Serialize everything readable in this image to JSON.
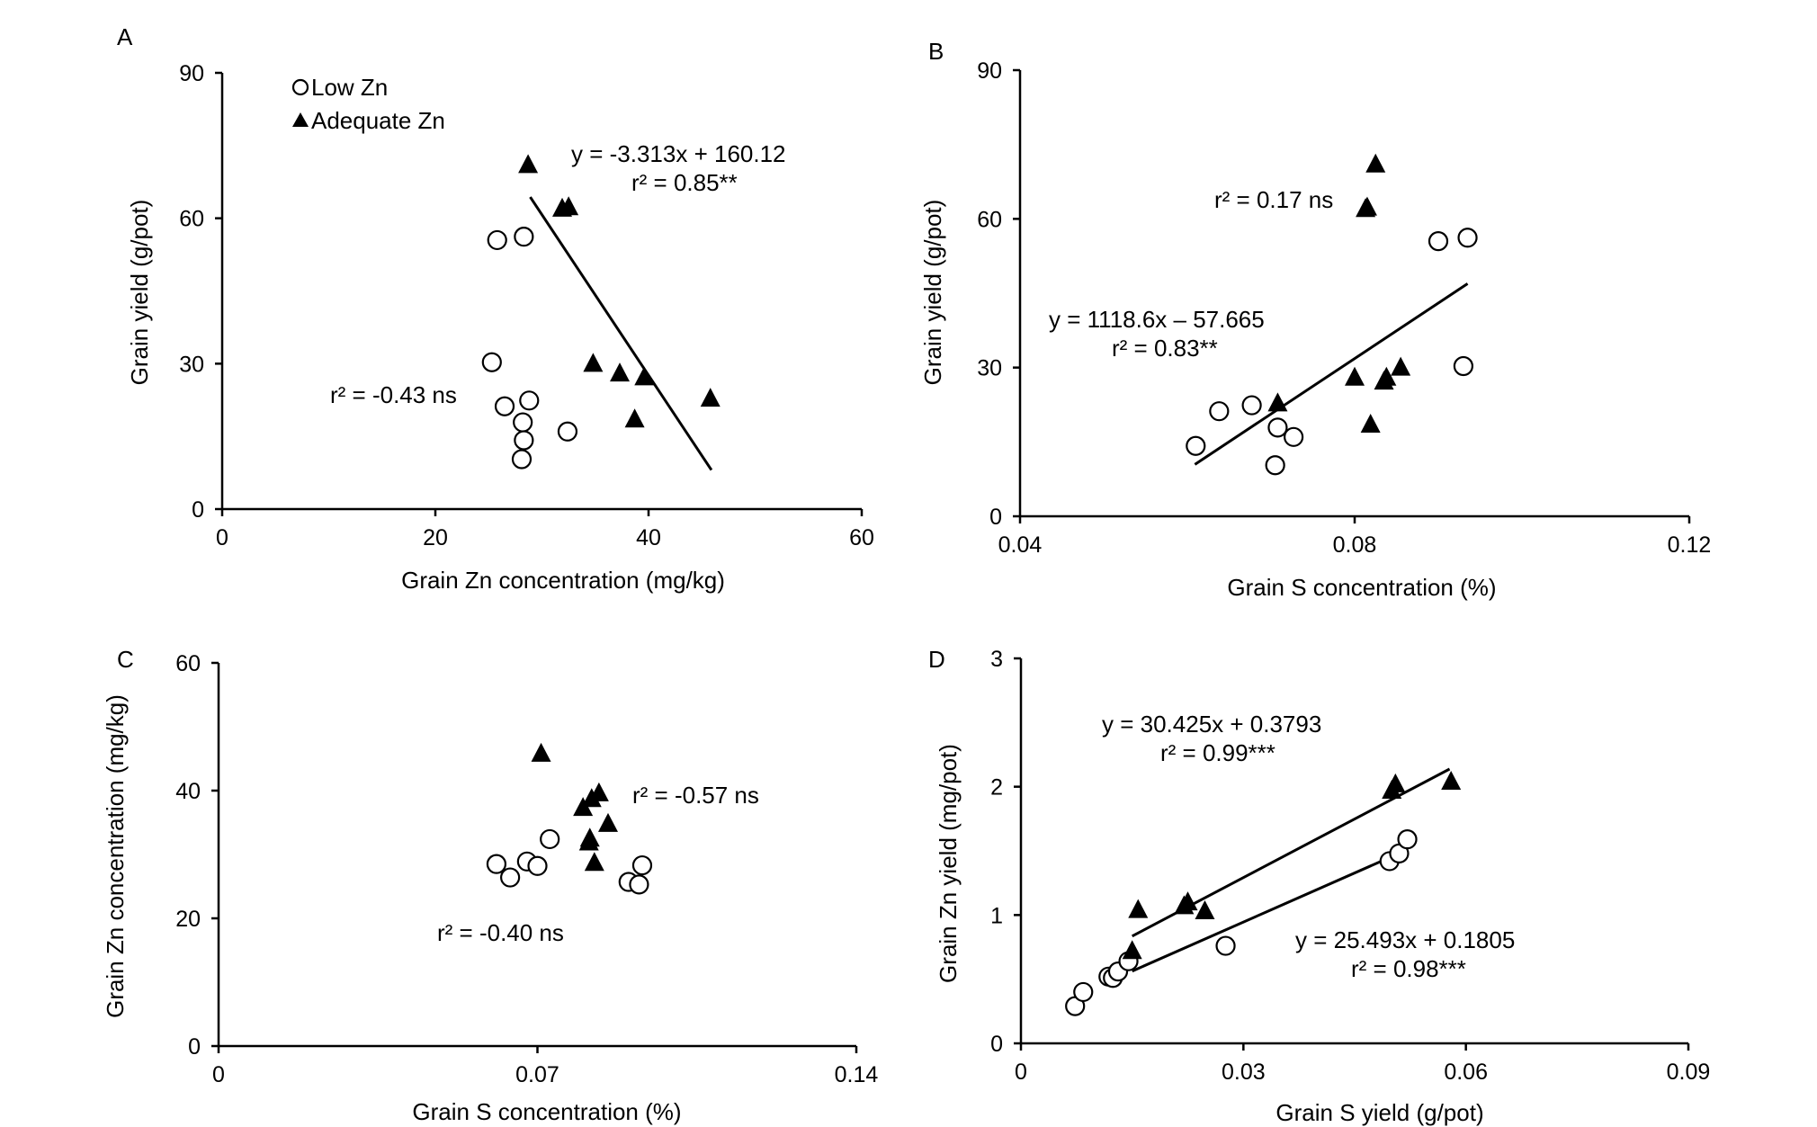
{
  "chart_data": [
    {
      "panel": "A",
      "type": "scatter",
      "xlabel": "Grain Zn concentration (mg/kg)",
      "ylabel": "Grain yield (g/pot)",
      "xlim": [
        0,
        60
      ],
      "ylim": [
        0,
        90
      ],
      "xticks": [
        "0",
        "20",
        "40",
        "60"
      ],
      "yticks": [
        "0",
        "30",
        "60",
        "90"
      ],
      "legend": {
        "placement": "top-left",
        "entries": [
          "Low Zn",
          "Adequate Zn"
        ]
      },
      "series": [
        {
          "name": "Low Zn",
          "marker": "circle-open",
          "points": [
            [
              25.8,
              55.5
            ],
            [
              28.3,
              56.2
            ],
            [
              25.3,
              30.3
            ],
            [
              26.5,
              21.2
            ],
            [
              28.8,
              22.4
            ],
            [
              28.2,
              17.9
            ],
            [
              28.3,
              14.2
            ],
            [
              32.4,
              16.0
            ],
            [
              28.1,
              10.3
            ]
          ]
        },
        {
          "name": "Adequate Zn",
          "marker": "triangle-filled",
          "points": [
            [
              28.7,
              71.0
            ],
            [
              31.9,
              62.0
            ],
            [
              32.5,
              62.3
            ],
            [
              34.8,
              30.0
            ],
            [
              37.3,
              28.0
            ],
            [
              39.6,
              27.2
            ],
            [
              38.7,
              18.5
            ],
            [
              45.8,
              22.8
            ]
          ]
        }
      ],
      "annotations": [
        {
          "equation": "y = -3.313x + 160.12",
          "r2": "r² = 0.85**"
        },
        {
          "r2": "r² = -0.43 ns"
        }
      ],
      "fit": {
        "series": "Adequate Zn",
        "x_range": [
          28.9,
          45.9
        ]
      }
    },
    {
      "panel": "B",
      "type": "scatter",
      "xlabel": "Grain S concentration (%)",
      "ylabel": "Grain yield (g/pot)",
      "xlim": [
        0.04,
        0.12
      ],
      "ylim": [
        0,
        90
      ],
      "xticks": [
        "0.04",
        "0.08",
        "0.12"
      ],
      "yticks": [
        "0",
        "30",
        "60",
        "90"
      ],
      "series": [
        {
          "name": "Low Zn",
          "marker": "circle-open",
          "points": [
            [
              0.061,
              14.2
            ],
            [
              0.0638,
              21.2
            ],
            [
              0.0677,
              22.4
            ],
            [
              0.0708,
              17.9
            ],
            [
              0.0727,
              16.0
            ],
            [
              0.0705,
              10.3
            ],
            [
              0.09,
              55.5
            ],
            [
              0.0935,
              56.2
            ],
            [
              0.093,
              30.3
            ]
          ]
        },
        {
          "name": "Adequate Zn",
          "marker": "triangle-filled",
          "points": [
            [
              0.0825,
              71.0
            ],
            [
              0.0813,
              62.0
            ],
            [
              0.0815,
              62.3
            ],
            [
              0.08,
              28.0
            ],
            [
              0.0835,
              27.2
            ],
            [
              0.0838,
              28.0
            ],
            [
              0.0855,
              30.0
            ],
            [
              0.0819,
              18.5
            ],
            [
              0.0708,
              22.8
            ]
          ]
        }
      ],
      "annotations": [
        {
          "r2": "r² = 0.17 ns"
        },
        {
          "equation": "y = 1118.6x – 57.665",
          "r2": "r² = 0.83**"
        }
      ],
      "fit": {
        "series": "Low Zn",
        "x_range": [
          0.0609,
          0.0935
        ]
      }
    },
    {
      "panel": "C",
      "type": "scatter",
      "xlabel": "Grain S concentration (%)",
      "ylabel": "Grain Zn concentration (mg/kg)",
      "xlim": [
        0,
        0.14
      ],
      "ylim": [
        0,
        60
      ],
      "xticks": [
        "0",
        "0.07",
        "0.14"
      ],
      "yticks": [
        "0",
        "20",
        "40",
        "60"
      ],
      "series": [
        {
          "name": "Low Zn",
          "marker": "circle-open",
          "points": [
            [
              0.061,
              28.5
            ],
            [
              0.064,
              26.4
            ],
            [
              0.0677,
              28.9
            ],
            [
              0.07,
              28.2
            ],
            [
              0.0727,
              32.4
            ],
            [
              0.09,
              25.7
            ],
            [
              0.0923,
              25.3
            ],
            [
              0.093,
              28.3
            ]
          ]
        },
        {
          "name": "Adequate Zn",
          "marker": "triangle-filled",
          "points": [
            [
              0.0708,
              45.8
            ],
            [
              0.08,
              37.3
            ],
            [
              0.0819,
              38.7
            ],
            [
              0.0835,
              39.6
            ],
            [
              0.0813,
              31.9
            ],
            [
              0.0815,
              32.5
            ],
            [
              0.0855,
              34.8
            ],
            [
              0.0825,
              28.7
            ]
          ]
        }
      ],
      "annotations": [
        {
          "r2": "r² = -0.57 ns"
        },
        {
          "r2": "r² = -0.40 ns"
        }
      ]
    },
    {
      "panel": "D",
      "type": "scatter",
      "xlabel": "Grain S yield (g/pot)",
      "ylabel": "Grain Zn yield (mg/pot)",
      "xlim": [
        0,
        0.09
      ],
      "ylim": [
        0,
        3
      ],
      "xticks": [
        "0",
        "0.03",
        "0.06",
        "0.09"
      ],
      "yticks": [
        "0",
        "1",
        "2",
        "3"
      ],
      "series": [
        {
          "name": "Low Zn",
          "marker": "circle-open",
          "points": [
            [
              0.0073,
              0.29
            ],
            [
              0.0084,
              0.4
            ],
            [
              0.0118,
              0.52
            ],
            [
              0.0124,
              0.51
            ],
            [
              0.0131,
              0.56
            ],
            [
              0.0145,
              0.64
            ],
            [
              0.0276,
              0.76
            ],
            [
              0.0497,
              1.42
            ],
            [
              0.051,
              1.48
            ],
            [
              0.0521,
              1.59
            ]
          ]
        },
        {
          "name": "Adequate Zn",
          "marker": "triangle-filled",
          "points": [
            [
              0.015,
              0.72
            ],
            [
              0.0158,
              1.04
            ],
            [
              0.022,
              1.07
            ],
            [
              0.0225,
              1.1
            ],
            [
              0.0248,
              1.03
            ],
            [
              0.05,
              1.97
            ],
            [
              0.0505,
              2.02
            ],
            [
              0.058,
              2.04
            ]
          ]
        }
      ],
      "annotations": [
        {
          "equation": "y = 30.425x + 0.3793",
          "r2": "r² = 0.99***"
        },
        {
          "equation": "y = 25.493x + 0.1805",
          "r2": "r² = 0.98***"
        }
      ],
      "fits": [
        {
          "series": "Adequate Zn",
          "x_range": [
            0.015,
            0.0578
          ]
        },
        {
          "series": "Low Zn",
          "x_range": [
            0.015,
            0.0512
          ]
        }
      ]
    }
  ]
}
